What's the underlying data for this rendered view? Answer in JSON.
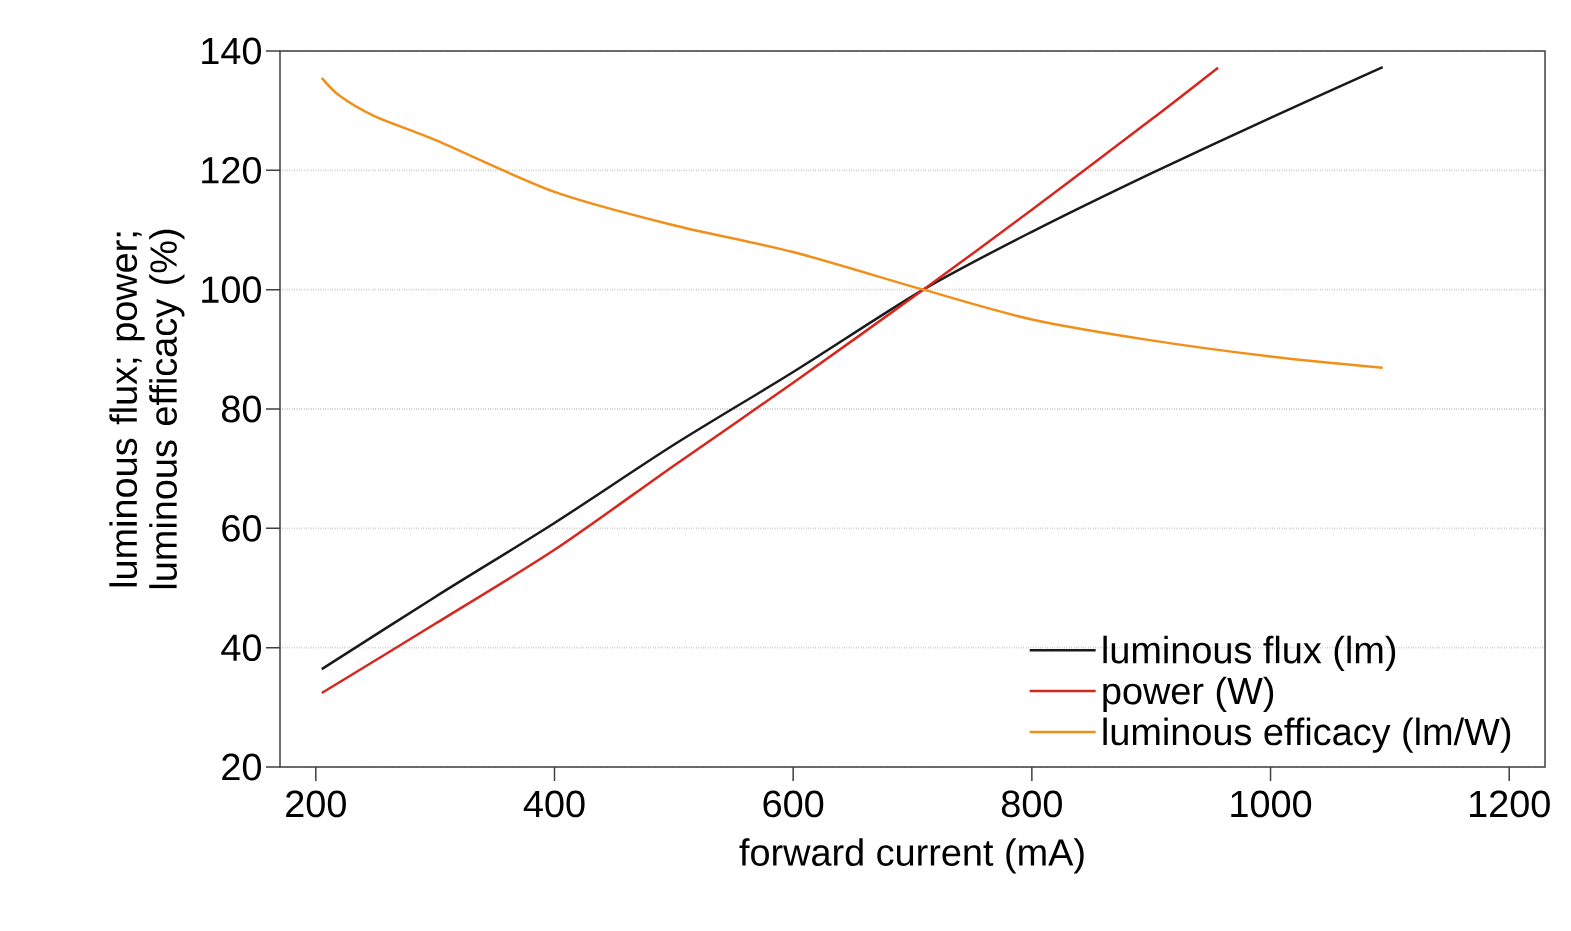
{
  "chart_data": {
    "type": "line",
    "xlabel": "forward current (mA)",
    "ylabel": "luminous flux; power; luminous efficacy (%)",
    "xlim": [
      170,
      1230
    ],
    "xticks": [
      200,
      400,
      600,
      800,
      1000,
      1200
    ],
    "ylim": [
      20,
      140
    ],
    "yticks": [
      20,
      40,
      60,
      80,
      100,
      120,
      140
    ],
    "grid": "y",
    "legend": "bottom right",
    "line_style": "solid",
    "marker": "none",
    "series": [
      {
        "name": "luminous flux (lm)",
        "color": "#1a1a1a",
        "x": [
          205,
          300,
          400,
          500,
          600,
          709,
          800,
          900,
          1000,
          1094
        ],
        "values": [
          36.4,
          48.5,
          60.9,
          74,
          86.2,
          100,
          109.7,
          119.5,
          128.8,
          137.3
        ]
      },
      {
        "name": "power (W)",
        "color": "#d7261e",
        "x": [
          205,
          300,
          400,
          500,
          600,
          709,
          800,
          900,
          956
        ],
        "values": [
          32.4,
          44,
          56.4,
          70.5,
          84.4,
          100,
          113.4,
          128.5,
          137.2
        ]
      },
      {
        "name": "luminous efficacy (lm/W)",
        "color": "#f0901a",
        "x": [
          205,
          220,
          250,
          300,
          400,
          500,
          600,
          709,
          800,
          900,
          1000,
          1094
        ],
        "values": [
          135.5,
          132.5,
          129,
          125.1,
          116.4,
          110.8,
          106.3,
          100,
          95,
          91.5,
          88.8,
          86.9
        ]
      }
    ]
  }
}
